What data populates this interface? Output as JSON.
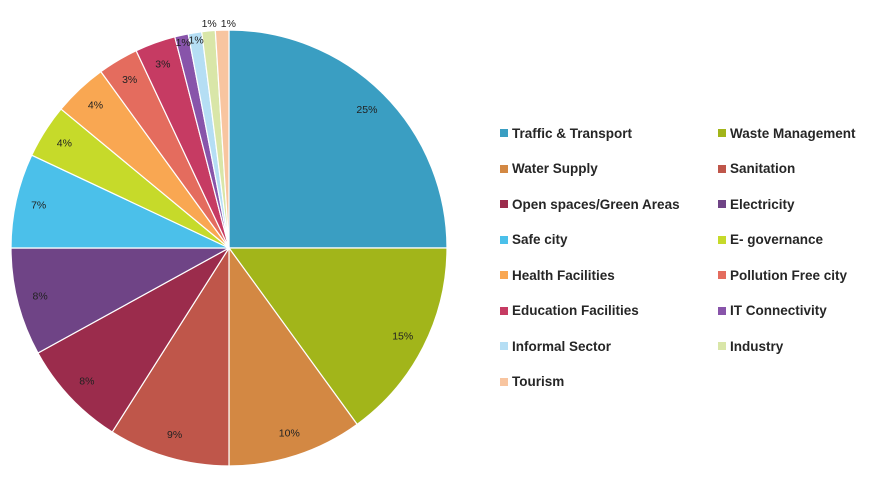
{
  "chart_data": {
    "type": "pie",
    "title": "",
    "start_angle": "12 o'clock, clockwise",
    "slices": [
      {
        "label": "Traffic & Transport",
        "value": 25,
        "display": "25%",
        "color": "#3A9EC2"
      },
      {
        "label": "Waste Management",
        "value": 15,
        "display": "15%",
        "color": "#A2B51A"
      },
      {
        "label": "Water Supply",
        "value": 10,
        "display": "10%",
        "color": "#D38843"
      },
      {
        "label": "Sanitation",
        "value": 9,
        "display": "9%",
        "color": "#BF564A"
      },
      {
        "label": "Open spaces/Green Areas",
        "value": 8,
        "display": "8%",
        "color": "#9B2C4C"
      },
      {
        "label": "Electricity",
        "value": 8,
        "display": "8%",
        "color": "#6F4486"
      },
      {
        "label": "Safe city",
        "value": 7,
        "display": "7%",
        "color": "#4BC0EA"
      },
      {
        "label": "E- governance",
        "value": 4,
        "display": "4%",
        "color": "#C6DA2A"
      },
      {
        "label": "Health Facilities",
        "value": 4,
        "display": "4%",
        "color": "#F9A752"
      },
      {
        "label": "Pollution Free city",
        "value": 3,
        "display": "3%",
        "color": "#E46C5E"
      },
      {
        "label": "Education Facilities",
        "value": 3,
        "display": "3%",
        "color": "#C63B63"
      },
      {
        "label": "IT Connectivity",
        "value": 1,
        "display": "1%",
        "color": "#8854AA"
      },
      {
        "label": "Informal Sector",
        "value": 1,
        "display": "1%",
        "color": "#B5DEF4"
      },
      {
        "label": "Industry",
        "value": 1,
        "display": "1%",
        "color": "#D9E6A8"
      },
      {
        "label": "Tourism",
        "value": 1,
        "display": "1%",
        "color": "#F8C5A0"
      }
    ],
    "legend": {
      "placement": "right",
      "items": [
        "Traffic & Transport",
        "Waste Management",
        "Water Supply",
        "Sanitation",
        "Open spaces/Green Areas",
        "Electricity",
        "Safe city",
        "E- governance",
        "Health Facilities",
        "Pollution Free city",
        "Education Facilities",
        "IT Connectivity",
        "Informal Sector",
        "Industry",
        "Tourism"
      ]
    }
  }
}
